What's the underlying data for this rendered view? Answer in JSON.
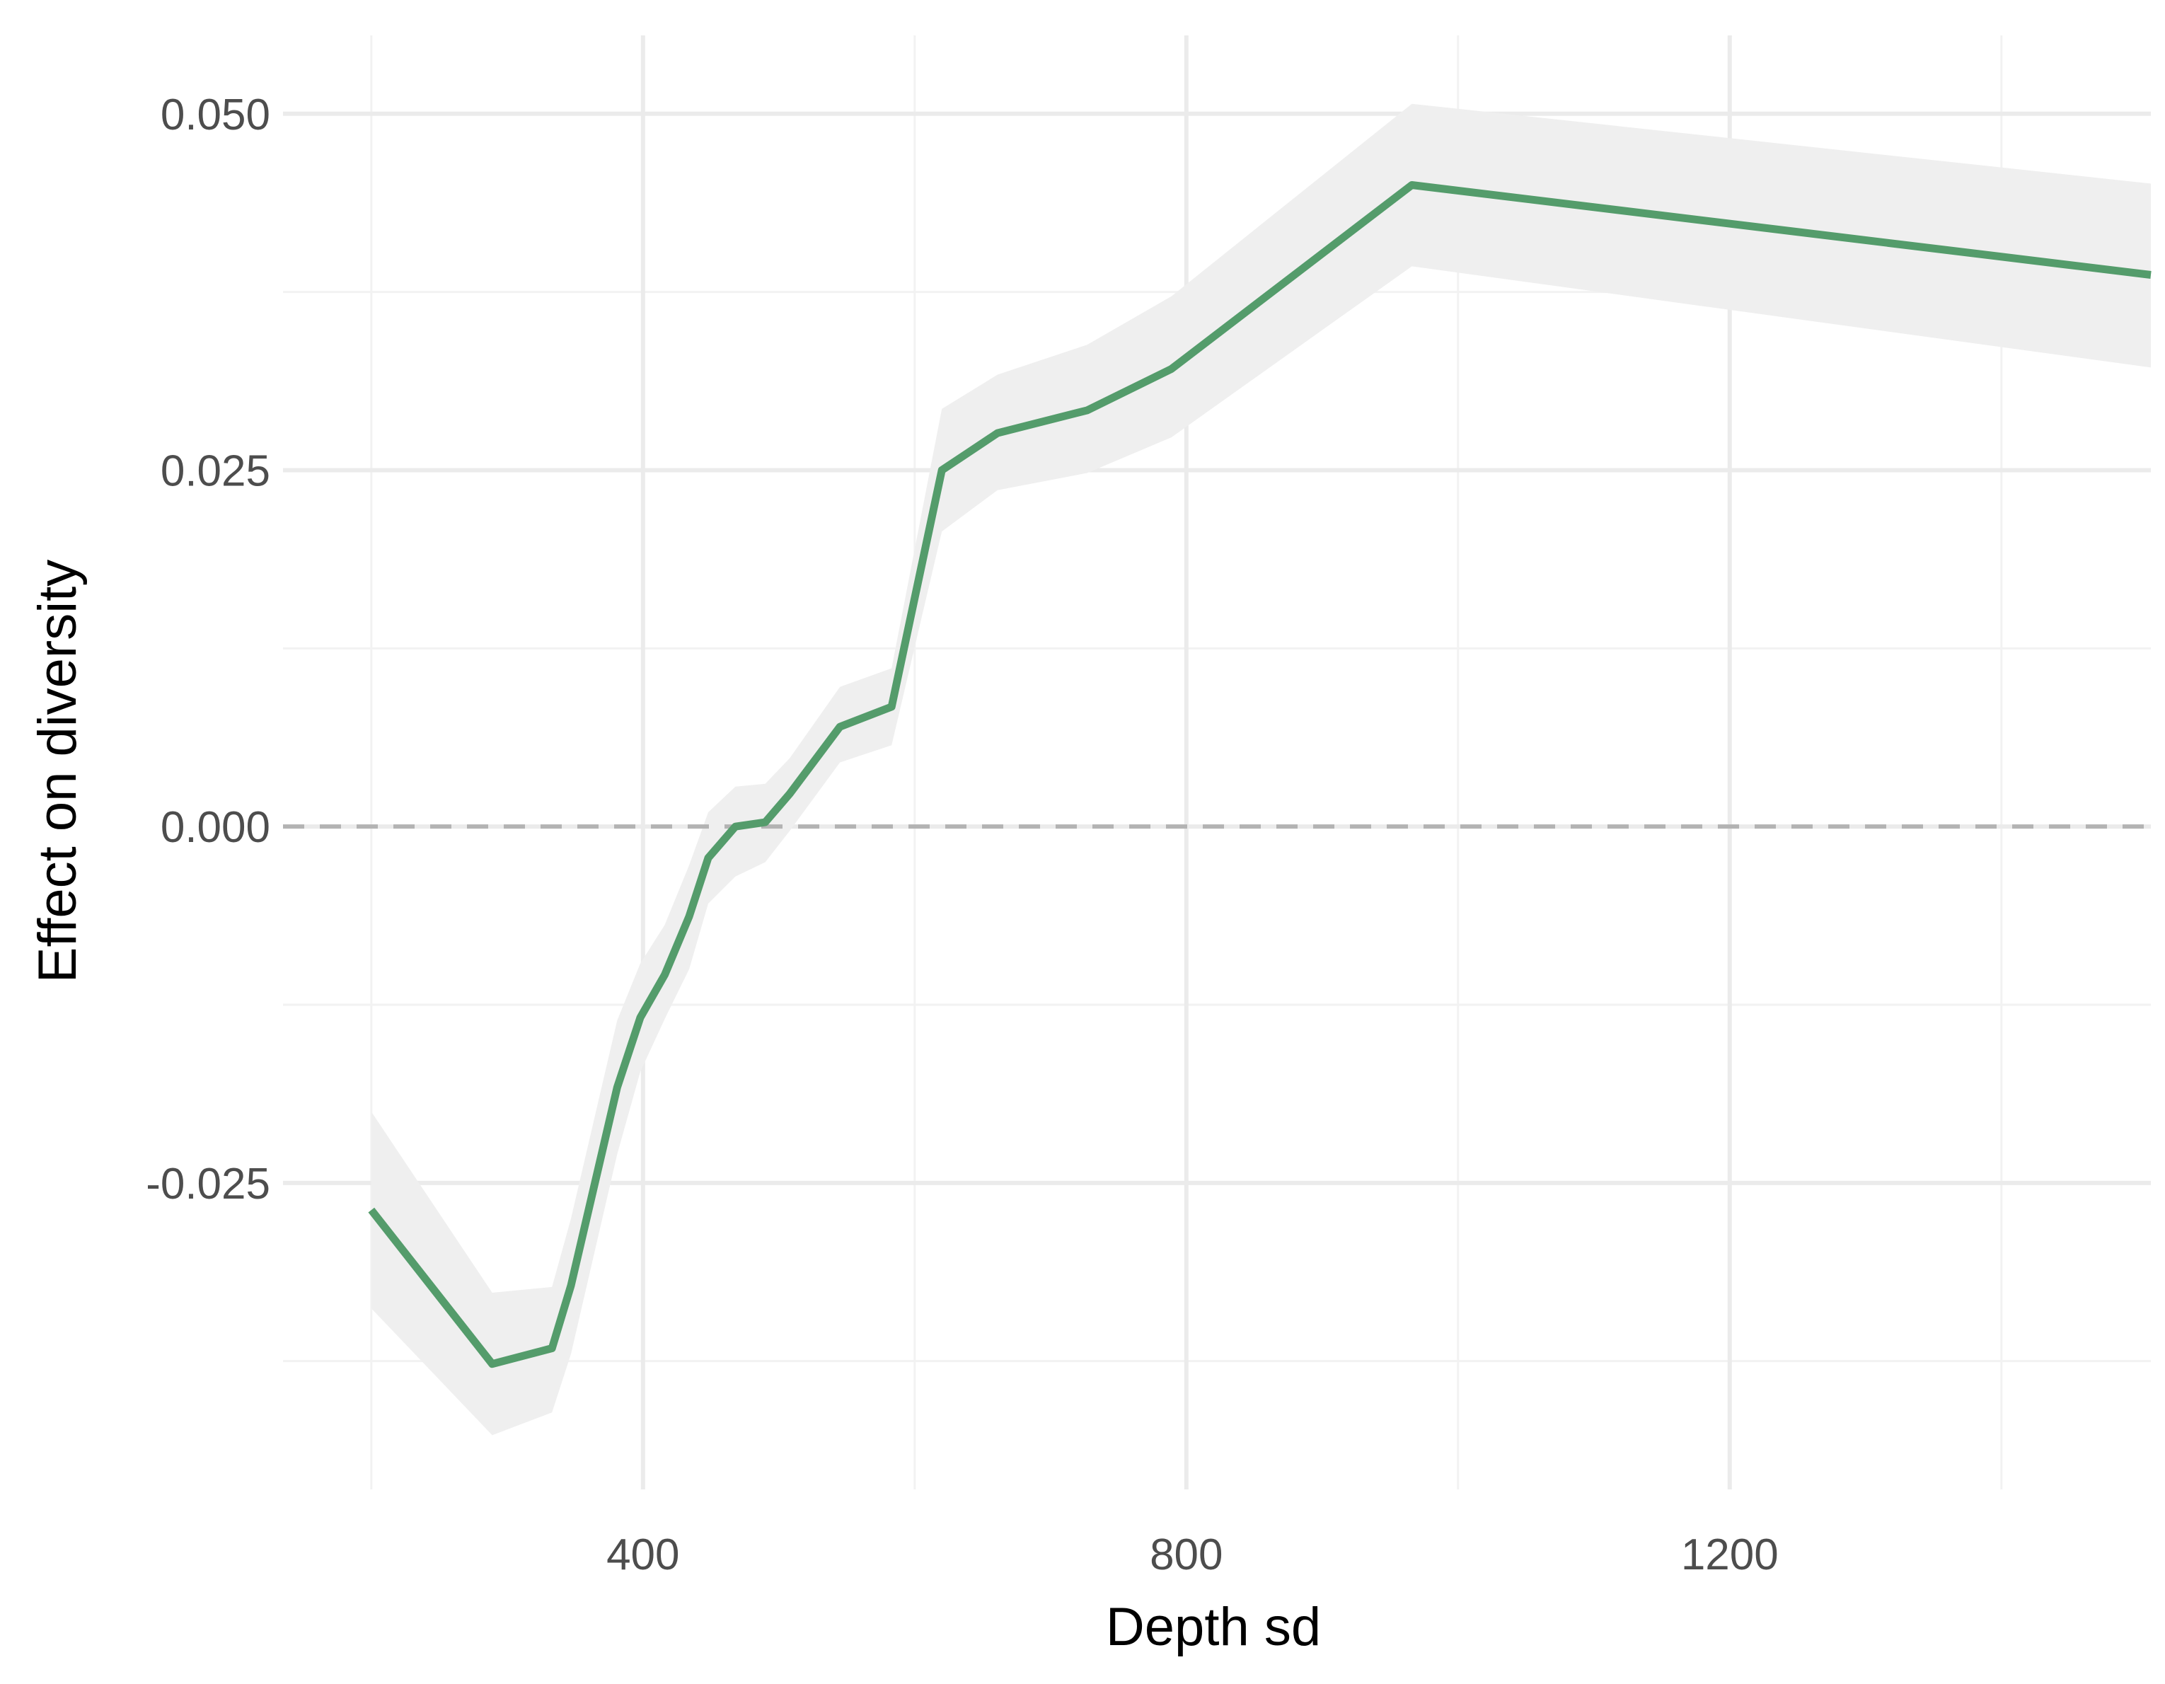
{
  "chart_data": {
    "type": "line",
    "xlabel": "Depth sd",
    "ylabel": "Effect on diversity",
    "xlim": [
      135,
      1510
    ],
    "ylim": [
      -0.0465,
      0.0555
    ],
    "x_ticks": [
      400,
      800,
      1200
    ],
    "x_tick_labels": [
      "400",
      "800",
      "1200"
    ],
    "x_minor_ticks": [
      200,
      600,
      1000,
      1400
    ],
    "y_ticks": [
      -0.025,
      0,
      0.025,
      0.05
    ],
    "y_tick_labels": [
      "-0.025",
      "0.000",
      "0.025",
      "0.050"
    ],
    "y_minor_ticks": [
      -0.0375,
      -0.0125,
      0.0125,
      0.0375
    ],
    "grid": true,
    "reference_line": {
      "y": 0,
      "style": "dashed"
    },
    "series": [
      {
        "x": [
          200,
          289,
          333,
          347,
          381,
          398,
          416,
          434,
          448,
          468,
          490,
          508,
          545,
          583,
          620,
          661,
          727,
          789,
          966,
          1510
        ],
        "y": [
          -0.0269,
          -0.0377,
          -0.0366,
          -0.0322,
          -0.0183,
          -0.0134,
          -0.0104,
          -0.0063,
          -0.0022,
          0.0,
          0.0003,
          0.0023,
          0.007,
          0.0084,
          0.025,
          0.0276,
          0.0292,
          0.0321,
          0.045,
          0.0387
        ],
        "lower": [
          -0.0338,
          -0.0427,
          -0.0411,
          -0.037,
          -0.023,
          -0.0172,
          -0.0135,
          -0.01,
          -0.0054,
          -0.0035,
          -0.0025,
          -0.0003,
          0.0045,
          0.0057,
          0.0207,
          0.0236,
          0.0248,
          0.0273,
          0.0393,
          0.0322
        ],
        "upper": [
          -0.02,
          -0.0327,
          -0.0323,
          -0.0275,
          -0.0136,
          -0.0096,
          -0.0069,
          -0.0027,
          0.001,
          0.0028,
          0.003,
          0.0048,
          0.0098,
          0.0111,
          0.0293,
          0.0317,
          0.0338,
          0.0372,
          0.0507,
          0.0451
        ]
      }
    ]
  },
  "colors": {
    "line": "#549c6b",
    "ribbon": "#efefef",
    "grid_major": "#ebebeb",
    "grid_minor": "#f2f2f2",
    "reference_line": "#b3b3b3"
  }
}
